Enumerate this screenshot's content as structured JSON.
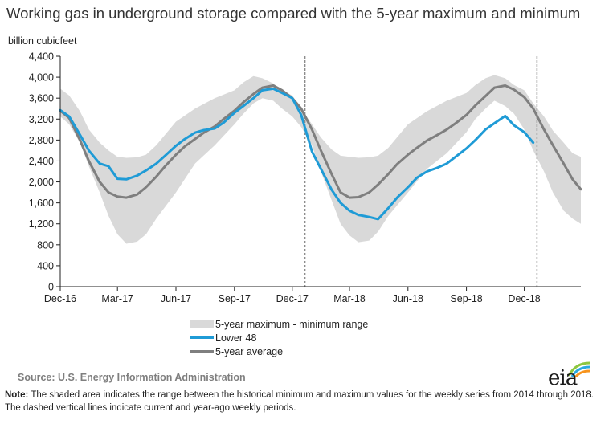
{
  "chart_data": {
    "type": "area",
    "title": "Working gas in underground storage compared with the 5-year maximum and minimum",
    "ylabel": "billion cubicfeet",
    "ylim": [
      0,
      4400
    ],
    "yticks": [
      0,
      400,
      800,
      1200,
      1600,
      2000,
      2400,
      2800,
      3200,
      3600,
      4000,
      4400
    ],
    "ytick_labels": [
      "0",
      "400",
      "800",
      "1,200",
      "1,600",
      "2,000",
      "2,400",
      "2,800",
      "3,200",
      "3,600",
      "4,000",
      "4,400"
    ],
    "xlim": [
      "2016-12-01",
      "2019-02-28"
    ],
    "xticks": [
      "2016-12-01",
      "2017-03-01",
      "2017-06-01",
      "2017-09-01",
      "2017-12-01",
      "2018-03-01",
      "2018-06-01",
      "2018-09-01",
      "2018-12-01"
    ],
    "xtick_labels": [
      "Dec-16",
      "Mar-17",
      "Jun-17",
      "Sep-17",
      "Dec-17",
      "Mar-18",
      "Jun-18",
      "Sep-18",
      "Dec-18"
    ],
    "vertical_dashed_lines": [
      "2017-12-21",
      "2018-12-21"
    ],
    "legend_position": "bottom",
    "grid": false,
    "band": {
      "name": "5-year maximum - minimum range",
      "color": "#d9d9d9",
      "x": [
        "2016-12-01",
        "2016-12-15",
        "2017-01-01",
        "2017-01-15",
        "2017-02-01",
        "2017-02-15",
        "2017-03-01",
        "2017-03-15",
        "2017-04-01",
        "2017-04-15",
        "2017-05-01",
        "2017-06-01",
        "2017-07-01",
        "2017-08-01",
        "2017-09-01",
        "2017-09-15",
        "2017-10-01",
        "2017-10-15",
        "2017-11-01",
        "2017-11-15",
        "2017-12-01",
        "2017-12-15",
        "2018-01-01",
        "2018-01-15",
        "2018-02-01",
        "2018-02-15",
        "2018-03-01",
        "2018-03-15",
        "2018-04-01",
        "2018-04-15",
        "2018-05-01",
        "2018-06-01",
        "2018-07-01",
        "2018-08-01",
        "2018-09-01",
        "2018-09-15",
        "2018-10-01",
        "2018-10-15",
        "2018-11-01",
        "2018-11-15",
        "2018-12-01",
        "2018-12-15",
        "2019-01-01",
        "2019-01-15",
        "2019-02-01",
        "2019-02-15",
        "2019-02-28"
      ],
      "max": [
        3780,
        3650,
        3350,
        3000,
        2750,
        2600,
        2480,
        2460,
        2470,
        2520,
        2700,
        3150,
        3400,
        3600,
        3750,
        3900,
        4020,
        3980,
        3880,
        3750,
        3650,
        3400,
        3100,
        2850,
        2620,
        2500,
        2480,
        2460,
        2470,
        2500,
        2650,
        3100,
        3350,
        3550,
        3700,
        3850,
        3980,
        4040,
        3980,
        3850,
        3750,
        3500,
        3250,
        2980,
        2750,
        2550,
        2480
      ],
      "min": [
        3250,
        3100,
        2750,
        2300,
        1800,
        1350,
        1000,
        820,
        860,
        1000,
        1300,
        1800,
        2350,
        2700,
        3100,
        3300,
        3500,
        3600,
        3550,
        3400,
        3250,
        3050,
        2700,
        2200,
        1650,
        1200,
        980,
        850,
        880,
        1050,
        1350,
        1800,
        2250,
        2550,
        2950,
        3200,
        3400,
        3550,
        3450,
        3300,
        3000,
        2600,
        2200,
        1800,
        1450,
        1300,
        1200
      ]
    },
    "series": [
      {
        "name": "Lower 48",
        "color": "#1f9bd6",
        "x": [
          "2016-12-01",
          "2016-12-15",
          "2017-01-01",
          "2017-01-15",
          "2017-02-01",
          "2017-02-15",
          "2017-03-01",
          "2017-03-15",
          "2017-04-01",
          "2017-04-15",
          "2017-05-01",
          "2017-05-15",
          "2017-06-01",
          "2017-06-15",
          "2017-07-01",
          "2017-07-15",
          "2017-08-01",
          "2017-08-15",
          "2017-09-01",
          "2017-09-15",
          "2017-10-01",
          "2017-10-15",
          "2017-11-01",
          "2017-11-15",
          "2017-12-01",
          "2017-12-15",
          "2018-01-01",
          "2018-01-15",
          "2018-02-01",
          "2018-02-15",
          "2018-03-01",
          "2018-03-15",
          "2018-04-01",
          "2018-04-15",
          "2018-05-01",
          "2018-05-15",
          "2018-06-01",
          "2018-06-15",
          "2018-07-01",
          "2018-07-15",
          "2018-08-01",
          "2018-08-15",
          "2018-09-01",
          "2018-09-15",
          "2018-10-01",
          "2018-10-15",
          "2018-11-01",
          "2018-11-15",
          "2018-12-01",
          "2018-12-15"
        ],
        "y": [
          3370,
          3250,
          2900,
          2600,
          2350,
          2300,
          2060,
          2050,
          2120,
          2220,
          2350,
          2500,
          2690,
          2820,
          2940,
          2990,
          3020,
          3130,
          3320,
          3450,
          3600,
          3750,
          3780,
          3700,
          3600,
          3280,
          2580,
          2250,
          1850,
          1600,
          1450,
          1370,
          1330,
          1290,
          1500,
          1700,
          1900,
          2080,
          2200,
          2260,
          2350,
          2480,
          2640,
          2800,
          3000,
          3120,
          3260,
          3080,
          2950,
          2750
        ]
      },
      {
        "name": "5-year average",
        "color": "#7f7f7f",
        "x": [
          "2016-12-01",
          "2016-12-15",
          "2017-01-01",
          "2017-01-15",
          "2017-02-01",
          "2017-02-15",
          "2017-03-01",
          "2017-03-15",
          "2017-04-01",
          "2017-04-15",
          "2017-05-01",
          "2017-05-15",
          "2017-06-01",
          "2017-06-15",
          "2017-07-01",
          "2017-07-15",
          "2017-08-01",
          "2017-08-15",
          "2017-09-01",
          "2017-09-15",
          "2017-10-01",
          "2017-10-15",
          "2017-11-01",
          "2017-11-15",
          "2017-12-01",
          "2017-12-15",
          "2018-01-01",
          "2018-01-15",
          "2018-02-01",
          "2018-02-15",
          "2018-03-01",
          "2018-03-15",
          "2018-04-01",
          "2018-04-15",
          "2018-05-01",
          "2018-05-15",
          "2018-06-01",
          "2018-06-15",
          "2018-07-01",
          "2018-07-15",
          "2018-08-01",
          "2018-08-15",
          "2018-09-01",
          "2018-09-15",
          "2018-10-01",
          "2018-10-15",
          "2018-11-01",
          "2018-11-15",
          "2018-12-01",
          "2018-12-15",
          "2019-01-01",
          "2019-01-15",
          "2019-02-01",
          "2019-02-15",
          "2019-02-28"
        ],
        "y": [
          3360,
          3220,
          2800,
          2400,
          2000,
          1800,
          1720,
          1700,
          1760,
          1900,
          2100,
          2300,
          2520,
          2680,
          2820,
          2940,
          3060,
          3200,
          3360,
          3520,
          3680,
          3800,
          3840,
          3750,
          3600,
          3400,
          3000,
          2600,
          2150,
          1800,
          1700,
          1710,
          1800,
          1950,
          2150,
          2340,
          2520,
          2650,
          2790,
          2880,
          3000,
          3120,
          3280,
          3460,
          3640,
          3800,
          3840,
          3760,
          3620,
          3400,
          3000,
          2700,
          2350,
          2050,
          1860
        ]
      }
    ],
    "legend": [
      "5-year maximum - minimum range",
      "Lower 48",
      "5-year average"
    ]
  },
  "source": "Source:  U.S. Energy Information Administration",
  "note_label": "Note:",
  "note_text": " The shaded area indicates the range between the historical minimum and maximum values for the weekly series from 2014 through 2018. The dashed vertical lines indicate current and year-ago weekly periods.",
  "logo_text": "eia",
  "logo_colors": [
    "#8dc63f",
    "#29a9e0",
    "#f7941d"
  ]
}
